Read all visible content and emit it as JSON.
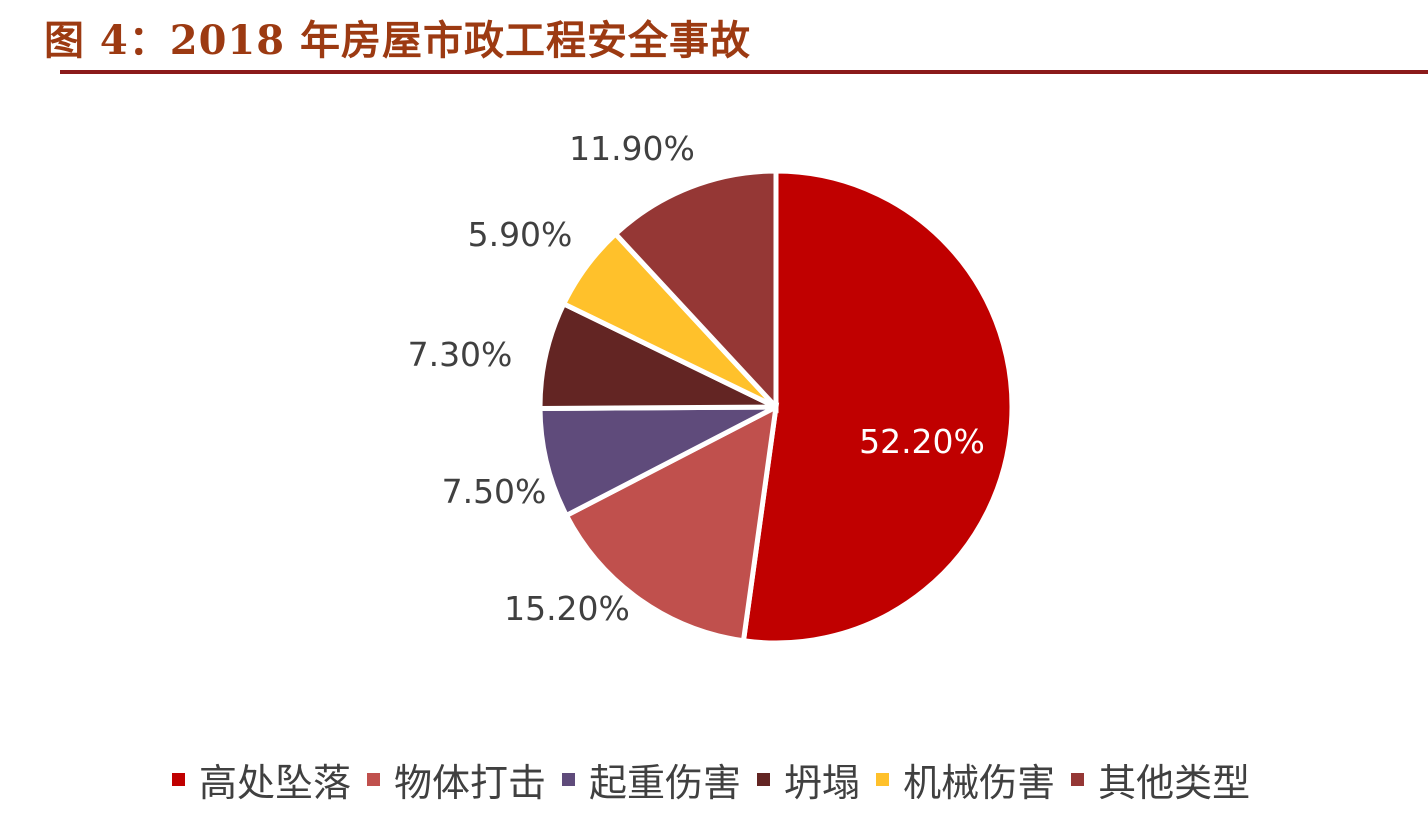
{
  "figure": {
    "title": "图 4：2018 年房屋市政工程安全事故"
  },
  "chart_data": {
    "type": "pie",
    "title": "图 4：2018 年房屋市政工程安全事故",
    "categories": [
      "高处坠落",
      "物体打击",
      "起重伤害",
      "坍塌",
      "机械伤害",
      "其他类型"
    ],
    "values": [
      52.2,
      15.2,
      7.5,
      7.3,
      5.9,
      11.9
    ],
    "labels": [
      "52.20%",
      "15.20%",
      "7.50%",
      "7.30%",
      "5.90%",
      "11.90%"
    ],
    "colors": [
      "#c00000",
      "#c0504d",
      "#5f4b7b",
      "#632523",
      "#ffc12b",
      "#953735"
    ],
    "start": "12 o'clock",
    "direction": "clockwise",
    "legend_position": "bottom"
  }
}
